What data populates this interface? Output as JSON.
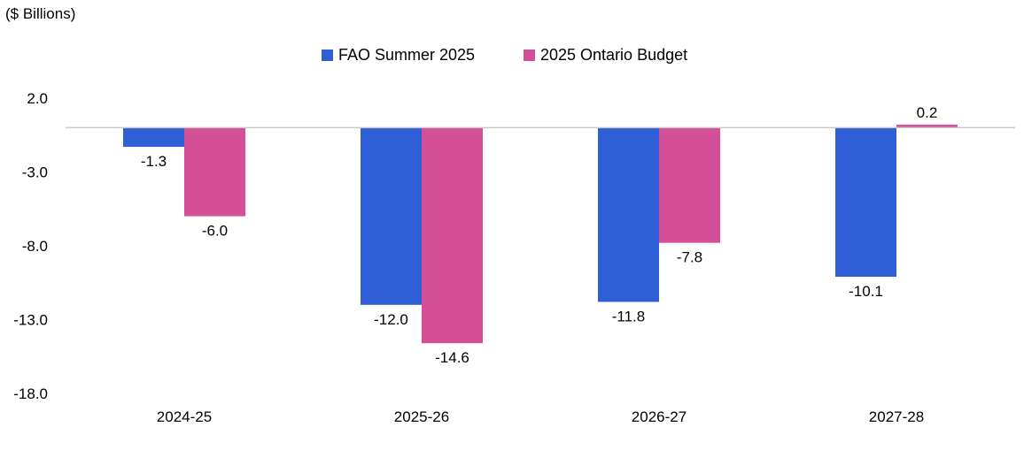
{
  "chart_data": {
    "type": "bar",
    "unit_label": "($ Billions)",
    "categories": [
      "2024-25",
      "2025-26",
      "2026-27",
      "2027-28"
    ],
    "series": [
      {
        "name": "FAO Summer 2025",
        "color": "#2f5fd6",
        "values": [
          -1.3,
          -12.0,
          -11.8,
          -10.1
        ]
      },
      {
        "name": "2025 Ontario Budget",
        "color": "#d44e98",
        "values": [
          -6.0,
          -14.6,
          -7.8,
          0.2
        ]
      }
    ],
    "data_labels": [
      [
        "-1.3",
        "-12.0",
        "-11.8",
        "-10.1"
      ],
      [
        "-6.0",
        "-14.6",
        "-7.8",
        "0.2"
      ]
    ],
    "y_ticks": [
      "2.0",
      "-3.0",
      "-8.0",
      "-13.0",
      "-18.0"
    ],
    "ylim": [
      -18,
      2
    ],
    "grid": false,
    "legend_position": "top-center",
    "title": "",
    "xlabel": "",
    "ylabel": ""
  }
}
